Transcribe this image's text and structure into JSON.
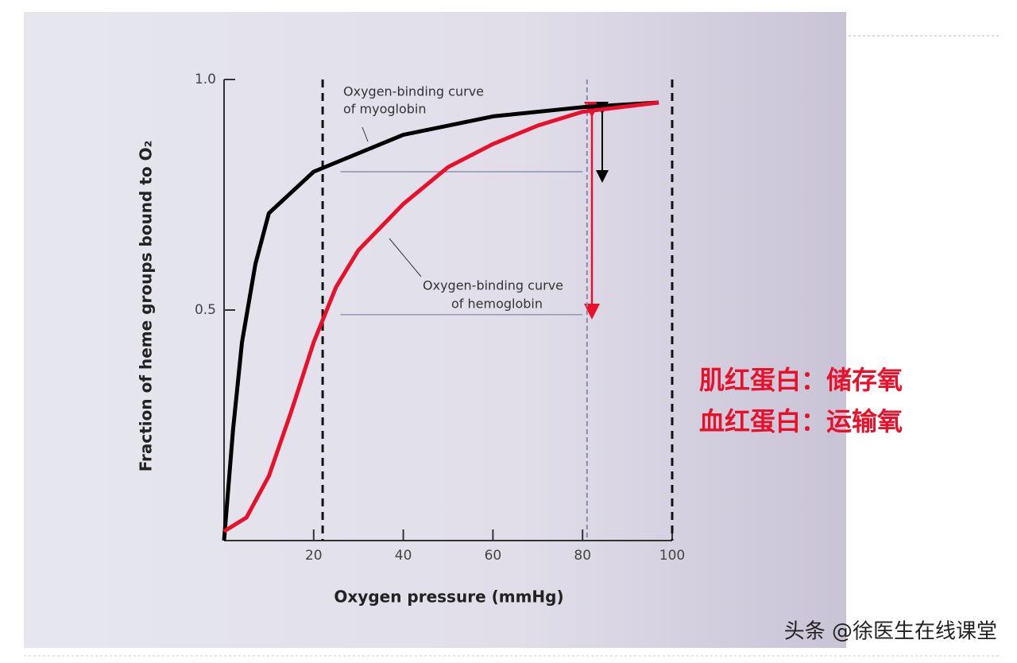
{
  "chart_data": {
    "type": "line",
    "xlabel": "Oxygen pressure (mmHg)",
    "ylabel": "Fraction of heme groups bound to O₂",
    "xlim": [
      0,
      100
    ],
    "ylim": [
      0,
      1
    ],
    "xticks": [
      20,
      40,
      60,
      80,
      100
    ],
    "yticks": [
      0.5,
      {
        "value": 1,
        "label": "1.0"
      }
    ],
    "series": [
      {
        "name": "myoglobin",
        "color": "#000000",
        "x": [
          0,
          2,
          4,
          7,
          10,
          20,
          40,
          60,
          80,
          97
        ],
        "values": [
          0,
          0.24,
          0.43,
          0.6,
          0.71,
          0.8,
          0.88,
          0.92,
          0.94,
          0.95
        ]
      },
      {
        "name": "hemoglobin",
        "color": "#e8102a",
        "x": [
          0,
          5,
          10,
          15,
          20,
          25,
          30,
          40,
          50,
          60,
          70,
          80,
          97
        ],
        "values": [
          0.02,
          0.05,
          0.14,
          0.28,
          0.43,
          0.55,
          0.63,
          0.73,
          0.81,
          0.86,
          0.9,
          0.93,
          0.95
        ]
      }
    ],
    "reference_x": [
      22,
      81,
      100
    ],
    "reference_y": [
      0.8,
      0.49
    ],
    "annotations": [
      "Oxygen-binding curve",
      "of myoglobin",
      "Oxygen-binding curve",
      "of hemoglobin"
    ],
    "notes": [
      "肌红蛋白：储存氧",
      "血红蛋白：运输氧"
    ],
    "watermark": "头条 @徐医生在线课堂"
  }
}
